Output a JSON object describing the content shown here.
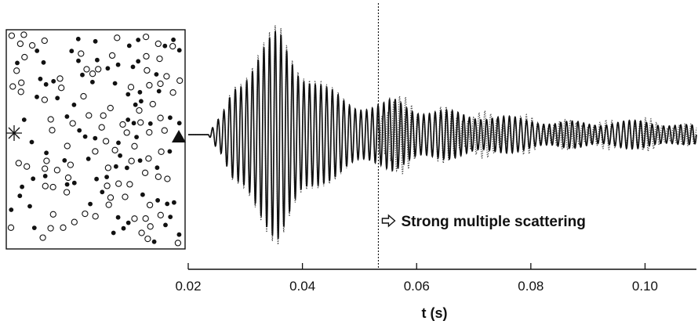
{
  "chart_data": [
    {
      "type": "scatter",
      "title": "",
      "scatterer_types": [
        "open-circle",
        "filled-dot"
      ],
      "source_marker": "asterisk",
      "receiver_marker": "filled-triangle",
      "grid": false
    },
    {
      "type": "line",
      "title": "",
      "xlabel": "t (s)",
      "ylabel": "",
      "xlim": [
        0.02,
        0.109
      ],
      "ylim": [
        -1,
        1
      ],
      "x_ticks": [
        "0.02",
        "0.04",
        "0.06",
        "0.08",
        "0.10"
      ],
      "x_tick_values": [
        0.02,
        0.04,
        0.06,
        0.08,
        0.1
      ],
      "series": [
        {
          "style": "solid",
          "frequency_hz": 1000
        },
        {
          "style": "dotted",
          "frequency_hz": 1000
        }
      ],
      "envelope": {
        "t": [
          0.02,
          0.0235,
          0.026,
          0.028,
          0.03,
          0.032,
          0.034,
          0.036,
          0.038,
          0.04,
          0.042,
          0.044,
          0.046,
          0.048,
          0.05,
          0.052,
          0.054,
          0.056,
          0.06,
          0.064,
          0.068,
          0.072,
          0.076,
          0.08,
          0.084,
          0.088,
          0.092,
          0.096,
          0.1,
          0.104,
          0.109
        ],
        "a": [
          0.0,
          0.0,
          0.2,
          0.55,
          0.62,
          0.7,
          0.82,
          0.98,
          0.85,
          0.66,
          0.52,
          0.42,
          0.37,
          0.33,
          0.3,
          0.28,
          0.28,
          0.32,
          0.26,
          0.22,
          0.2,
          0.18,
          0.16,
          0.15,
          0.11,
          0.12,
          0.11,
          0.12,
          0.13,
          0.1,
          0.08
        ]
      },
      "marker_line": {
        "t": 0.0533,
        "style": "dotted"
      },
      "annotation": {
        "text": "Strong multiple scattering",
        "t": 0.0533,
        "arrow": "right"
      },
      "grid": false,
      "legend": "none"
    }
  ]
}
